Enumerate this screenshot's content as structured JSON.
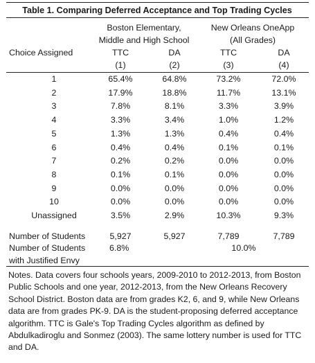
{
  "table": {
    "title": "Table 1. Comparing Deferred Acceptance and Top Trading Cycles",
    "group_boston": [
      "Boston Elementary,",
      "Middle and High School"
    ],
    "group_neworleans": [
      "New Orleans OneApp",
      "(All Grades)"
    ],
    "row_header_label": "Choice Assigned",
    "columns": [
      {
        "name": "TTC",
        "num": "(1)"
      },
      {
        "name": "DA",
        "num": "(2)"
      },
      {
        "name": "TTC",
        "num": "(3)"
      },
      {
        "name": "DA",
        "num": "(4)"
      }
    ],
    "rows": [
      {
        "label": "1",
        "values": [
          "65.4%",
          "64.8%",
          "73.2%",
          "72.0%"
        ]
      },
      {
        "label": "2",
        "values": [
          "17.9%",
          "18.8%",
          "11.7%",
          "13.1%"
        ]
      },
      {
        "label": "3",
        "values": [
          "7.8%",
          "8.1%",
          "3.3%",
          "3.9%"
        ]
      },
      {
        "label": "4",
        "values": [
          "3.3%",
          "3.4%",
          "1.0%",
          "1.2%"
        ]
      },
      {
        "label": "5",
        "values": [
          "1.3%",
          "1.3%",
          "0.4%",
          "0.4%"
        ]
      },
      {
        "label": "6",
        "values": [
          "0.4%",
          "0.4%",
          "0.1%",
          "0.1%"
        ]
      },
      {
        "label": "7",
        "values": [
          "0.2%",
          "0.2%",
          "0.0%",
          "0.0%"
        ]
      },
      {
        "label": "8",
        "values": [
          "0.1%",
          "0.1%",
          "0.0%",
          "0.0%"
        ]
      },
      {
        "label": "9",
        "values": [
          "0.0%",
          "0.0%",
          "0.0%",
          "0.0%"
        ]
      },
      {
        "label": "10",
        "values": [
          "0.0%",
          "0.0%",
          "0.0%",
          "0.0%"
        ]
      },
      {
        "label": "Unassigned",
        "values": [
          "3.5%",
          "2.9%",
          "10.3%",
          "9.3%"
        ]
      }
    ],
    "num_students": {
      "label": "Number of Students",
      "values": [
        "5,927",
        "5,927",
        "7,789",
        "7,789"
      ]
    },
    "justified_envy": {
      "label": [
        "Number of Students",
        "with Justified Envy"
      ],
      "boston": "6.8%",
      "neworleans": "10.0%"
    },
    "notes": "Notes. Data covers four schools years, 2009-2010 to 2012-2013, from Boston Public Schools and one year, 2012-2013, from the New Orleans Recovery School District.  Boston data are from grades K2, 6, and 9, while New Orleans data are from grades PK-9.  DA is the student-proposing deferred acceptance algorithm.  TTC is Gale's Top Trading Cycles algorithm as defined by Abdulkadiroglu and Sonmez (2003).  The same lottery number is used for TTC and DA."
  }
}
